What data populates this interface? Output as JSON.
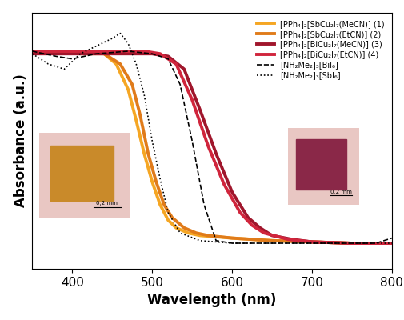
{
  "chart_data": {
    "type": "line",
    "x_label": "Wavelength (nm)",
    "y_label": "Absorbance (a.u.)",
    "xlim": [
      350,
      800
    ],
    "xticks": [
      400,
      500,
      600,
      700,
      800
    ],
    "ylim": [
      0,
      1
    ],
    "tick_labels": "x",
    "legend": "upper right",
    "annotations": [
      "0,2 mm",
      "0,2 mm"
    ],
    "series": [
      {
        "name": "[PPh₄]₂[SbCu₂I₇(MeCN)] (1)",
        "color": "#f5a623",
        "line_style": "solid",
        "x": [
          350,
          380,
          410,
          440,
          455,
          470,
          480,
          490,
          500,
          510,
          520,
          530,
          545,
          560,
          600,
          650,
          700,
          750,
          800
        ],
        "values": [
          0.85,
          0.85,
          0.85,
          0.84,
          0.8,
          0.7,
          0.58,
          0.45,
          0.34,
          0.25,
          0.19,
          0.16,
          0.14,
          0.13,
          0.12,
          0.11,
          0.105,
          0.1,
          0.1
        ]
      },
      {
        "name": "[PPh₄]₂[SbCu₂I₇(EtCN)] (2)",
        "color": "#e07b1a",
        "line_style": "solid",
        "x": [
          350,
          380,
          410,
          440,
          460,
          475,
          485,
          495,
          505,
          515,
          525,
          540,
          555,
          570,
          600,
          650,
          700,
          750,
          800
        ],
        "values": [
          0.85,
          0.85,
          0.84,
          0.84,
          0.8,
          0.72,
          0.6,
          0.45,
          0.34,
          0.25,
          0.2,
          0.16,
          0.14,
          0.13,
          0.12,
          0.11,
          0.105,
          0.1,
          0.1
        ]
      },
      {
        "name": "[PPh₄]₂[BiCu₂I₇(MeCN)] (3)",
        "color": "#a0162c",
        "line_style": "solid",
        "x": [
          350,
          400,
          450,
          500,
          520,
          540,
          560,
          580,
          600,
          620,
          635,
          650,
          675,
          700,
          750,
          800
        ],
        "values": [
          0.84,
          0.84,
          0.84,
          0.84,
          0.83,
          0.78,
          0.62,
          0.45,
          0.3,
          0.2,
          0.16,
          0.13,
          0.115,
          0.105,
          0.1,
          0.1
        ]
      },
      {
        "name": "[PPh₄]₂[BiCu₂I₇(EtCN)] (4)",
        "color": "#d0253c",
        "line_style": "solid",
        "x": [
          350,
          400,
          450,
          490,
          510,
          530,
          550,
          570,
          590,
          610,
          625,
          640,
          670,
          700,
          750,
          800
        ],
        "values": [
          0.85,
          0.85,
          0.85,
          0.85,
          0.84,
          0.8,
          0.66,
          0.48,
          0.33,
          0.22,
          0.17,
          0.14,
          0.115,
          0.105,
          0.1,
          0.1
        ]
      },
      {
        "name": "[NH₂Me₂]₃[BiI₆]",
        "color": "#000000",
        "line_style": "dashed",
        "x": [
          350,
          380,
          400,
          430,
          470,
          500,
          520,
          535,
          550,
          565,
          580,
          600,
          650,
          700,
          780,
          800
        ],
        "values": [
          0.85,
          0.83,
          0.82,
          0.84,
          0.85,
          0.84,
          0.82,
          0.72,
          0.5,
          0.25,
          0.11,
          0.1,
          0.1,
          0.1,
          0.1,
          0.12
        ]
      },
      {
        "name": "[NH₂Me₂]₃[SbI₆]",
        "color": "#000000",
        "line_style": "dotted",
        "x": [
          350,
          370,
          390,
          410,
          430,
          450,
          460,
          470,
          480,
          490,
          500,
          510,
          520,
          535,
          560,
          600,
          700,
          800
        ],
        "values": [
          0.84,
          0.8,
          0.78,
          0.84,
          0.87,
          0.9,
          0.92,
          0.88,
          0.8,
          0.68,
          0.5,
          0.35,
          0.22,
          0.14,
          0.11,
          0.1,
          0.1,
          0.1
        ]
      }
    ]
  }
}
